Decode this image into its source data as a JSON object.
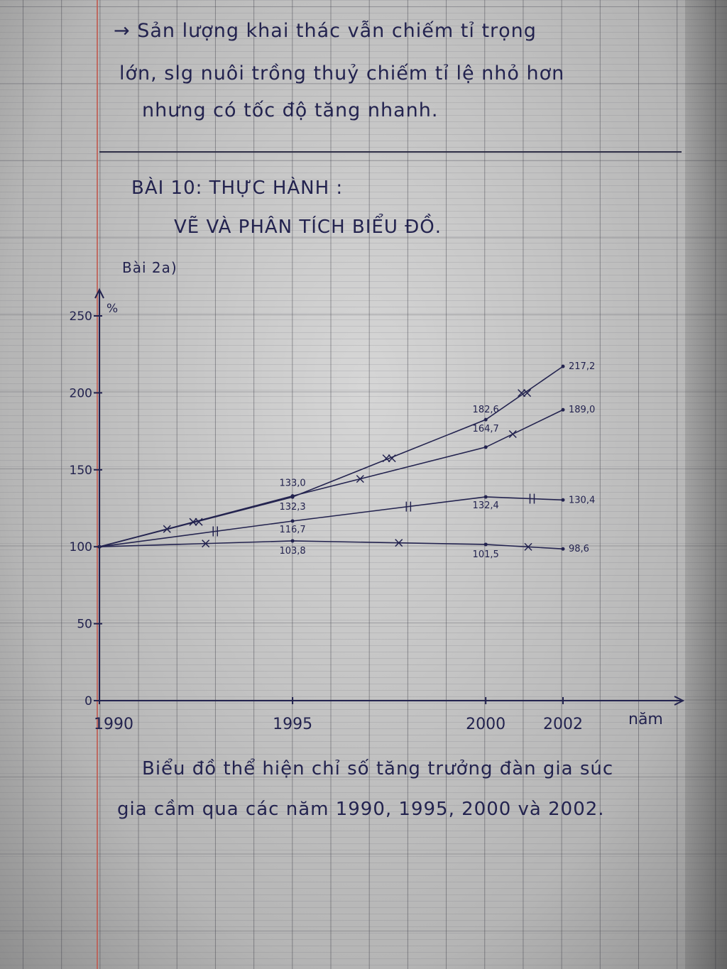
{
  "notes": {
    "line1": "→ Sản lượng khai thác vẫn chiếm tỉ trọng",
    "line2": "lớn, slg nuôi trồng thuỷ chiếm tỉ lệ nhỏ hơn",
    "line3": "nhưng có tốc độ tăng nhanh.",
    "lesson_title": "BÀI 10: THỰC HÀNH :",
    "lesson_subtitle": "VẼ VÀ PHÂN TÍCH BIỂU ĐỒ.",
    "exercise": "Bài 2a)",
    "caption1": "Biểu đồ thể hiện chỉ số tăng trưởng đàn gia súc",
    "caption2": "gia cầm qua các năm 1990, 1995, 2000 và 2002."
  },
  "chart_data": {
    "type": "line",
    "ylabel": "%",
    "xlabel": "năm",
    "x": [
      1990,
      1995,
      2000,
      2002
    ],
    "ylim": [
      0,
      250
    ],
    "yticks": [
      "0",
      "50",
      "100",
      "150",
      "200",
      "250"
    ],
    "xticks": [
      "1990",
      "1995",
      "2000",
      "2002"
    ],
    "grid": true,
    "series": [
      {
        "values": [
          100,
          132.3,
          182.6,
          217.2
        ],
        "labels": [
          "",
          "132,3",
          "182,6",
          "217,2"
        ],
        "marker": "xx"
      },
      {
        "values": [
          100,
          133.0,
          164.7,
          189.0
        ],
        "labels": [
          "",
          "133,0",
          "164,7",
          "189,0"
        ],
        "marker": "x"
      },
      {
        "values": [
          100,
          116.7,
          132.4,
          130.4
        ],
        "labels": [
          "",
          "116,7",
          "132,4",
          "130,4"
        ],
        "marker": "ll"
      },
      {
        "values": [
          100,
          103.8,
          101.5,
          98.6
        ],
        "labels": [
          "",
          "103,8",
          "101,5",
          "98,6"
        ],
        "marker": "x"
      }
    ],
    "ink_color": "#23234f"
  }
}
